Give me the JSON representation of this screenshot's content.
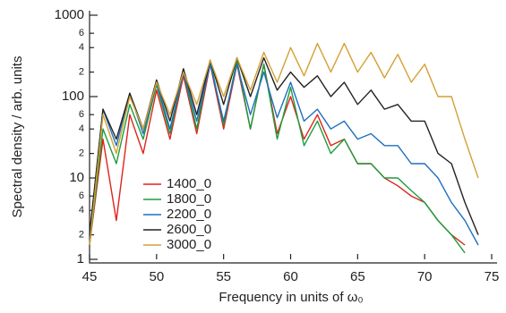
{
  "chart_data": {
    "type": "line",
    "xlabel": "Frequency in units of ω₀",
    "ylabel": "Spectral density / arb. units",
    "log_y": true,
    "legend": "center-left",
    "x": [
      45,
      46,
      47,
      48,
      49,
      50,
      51,
      52,
      53,
      54,
      55,
      56,
      57,
      58,
      59,
      60,
      61,
      62,
      63,
      64,
      65,
      66,
      67,
      68,
      69,
      70,
      71,
      72,
      73,
      74,
      75
    ],
    "xlim": [
      45,
      75
    ],
    "xticks": [
      45,
      50,
      55,
      60,
      65,
      70,
      75
    ],
    "ylim": [
      1,
      1000
    ],
    "yticks": [
      1,
      {
        "value": 2,
        "label": "2"
      },
      {
        "value": 4,
        "label": "4"
      },
      {
        "value": 6,
        "label": "6"
      },
      10,
      {
        "value": 20,
        "label": "2"
      },
      {
        "value": 40,
        "label": "4"
      },
      {
        "value": 60,
        "label": "6"
      },
      100,
      {
        "value": 200,
        "label": "2"
      },
      {
        "value": 400,
        "label": "4"
      },
      {
        "value": 600,
        "label": "6"
      },
      1000
    ],
    "series": [
      {
        "name": "1400_0",
        "color": "#e0231c",
        "values": [
          1.5,
          30,
          3,
          60,
          20,
          120,
          30,
          180,
          35,
          250,
          40,
          250,
          40,
          250,
          35,
          100,
          30,
          60,
          25,
          30,
          15,
          15,
          10,
          8,
          6,
          5,
          3,
          2,
          1.5,
          null,
          null
        ]
      },
      {
        "name": "1800_0",
        "color": "#1b9e3e",
        "values": [
          1.5,
          40,
          15,
          80,
          30,
          140,
          35,
          200,
          40,
          280,
          45,
          280,
          40,
          250,
          30,
          130,
          25,
          50,
          20,
          30,
          15,
          15,
          10,
          10,
          7,
          5,
          3,
          2,
          1.2,
          null,
          null
        ]
      },
      {
        "name": "2200_0",
        "color": "#1f6fc0",
        "values": [
          2,
          70,
          25,
          110,
          35,
          150,
          40,
          200,
          50,
          250,
          50,
          250,
          60,
          200,
          55,
          150,
          50,
          70,
          40,
          50,
          30,
          35,
          25,
          25,
          15,
          15,
          10,
          5,
          3,
          1.5,
          null
        ]
      },
      {
        "name": "2600_0",
        "color": "#222222",
        "values": [
          2,
          70,
          30,
          110,
          40,
          160,
          50,
          220,
          60,
          280,
          80,
          300,
          100,
          300,
          120,
          200,
          130,
          180,
          100,
          150,
          80,
          120,
          70,
          80,
          50,
          50,
          20,
          15,
          5,
          2,
          null
        ]
      },
      {
        "name": "3000_0",
        "color": "#d4a033",
        "values": [
          1.5,
          60,
          20,
          100,
          40,
          150,
          60,
          200,
          80,
          280,
          100,
          300,
          120,
          350,
          150,
          400,
          180,
          450,
          200,
          450,
          200,
          350,
          170,
          330,
          150,
          250,
          100,
          100,
          30,
          10,
          null
        ]
      }
    ]
  }
}
